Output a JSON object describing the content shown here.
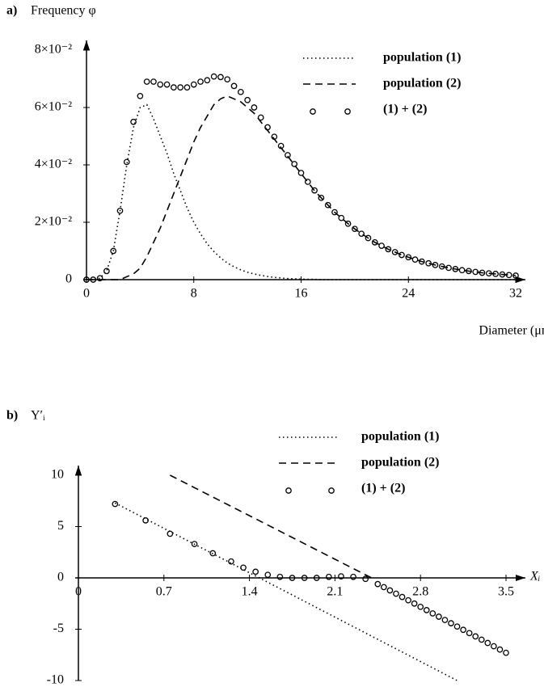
{
  "chart_data": [
    {
      "type": "line",
      "panel": "a)",
      "ylabel": "Frequency φ",
      "xlabel": "Diameter (μm)",
      "xlim": [
        0,
        32
      ],
      "ylim": [
        0,
        0.08
      ],
      "xticks": [
        0,
        8,
        16,
        24,
        32
      ],
      "yticks": [
        0,
        {
          "value": 0.02,
          "label": "2×10⁻²"
        },
        {
          "value": 0.04,
          "label": "4×10⁻²"
        },
        {
          "value": 0.06,
          "label": "6×10⁻²"
        },
        {
          "value": 0.08,
          "label": "8×10⁻²"
        }
      ],
      "x": [
        0,
        0.5,
        1,
        1.5,
        2,
        2.5,
        3,
        3.5,
        4,
        4.5,
        5,
        5.5,
        6,
        6.5,
        7,
        7.5,
        8,
        8.5,
        9,
        9.5,
        10,
        10.5,
        11,
        11.5,
        12,
        12.5,
        13,
        13.5,
        14,
        14.5,
        15,
        15.5,
        16,
        16.5,
        17,
        17.5,
        18,
        18.5,
        19,
        19.5,
        20,
        20.5,
        21,
        21.5,
        22,
        22.5,
        23,
        23.5,
        24,
        24.5,
        25,
        25.5,
        26,
        26.5,
        27,
        27.5,
        28,
        28.5,
        29,
        29.5,
        30,
        30.5,
        31,
        31.5,
        32
      ],
      "series": [
        {
          "name": "population (1)",
          "style": "dotted",
          "color": "#000000",
          "values": [
            0,
            0,
            0.0005,
            0.003,
            0.01,
            0.024,
            0.04,
            0.053,
            0.06,
            0.061,
            0.056,
            0.05,
            0.044,
            0.037,
            0.031,
            0.025,
            0.02,
            0.016,
            0.0125,
            0.0098,
            0.0076,
            0.0058,
            0.0045,
            0.0034,
            0.0026,
            0.002,
            0.0015,
            0.0011,
            0.0008,
            0.0006,
            0.0004,
            0.0003,
            0.0002,
            0.0001,
            0.0001,
            0,
            0,
            0,
            0,
            0,
            0,
            0,
            0,
            0,
            0,
            0,
            0,
            0,
            0,
            0,
            0,
            0,
            0,
            0,
            0,
            0,
            0,
            0,
            0,
            0,
            0,
            0,
            0,
            0,
            0
          ]
        },
        {
          "name": "population (2)",
          "style": "dashed",
          "color": "#000000",
          "values": [
            0,
            0,
            0,
            0,
            0,
            0,
            0.001,
            0.002,
            0.004,
            0.008,
            0.013,
            0.018,
            0.024,
            0.03,
            0.036,
            0.042,
            0.048,
            0.053,
            0.057,
            0.061,
            0.063,
            0.064,
            0.063,
            0.062,
            0.06,
            0.058,
            0.055,
            0.052,
            0.049,
            0.046,
            0.043,
            0.04,
            0.037,
            0.034,
            0.031,
            0.0285,
            0.026,
            0.0235,
            0.0215,
            0.0195,
            0.0177,
            0.016,
            0.0145,
            0.013,
            0.0118,
            0.0106,
            0.0096,
            0.0086,
            0.0078,
            0.007,
            0.0063,
            0.0057,
            0.0051,
            0.0046,
            0.0041,
            0.0037,
            0.0033,
            0.003,
            0.0027,
            0.0024,
            0.0022,
            0.002,
            0.0018,
            0.0016,
            0.0014
          ]
        },
        {
          "name": "(1) + (2)",
          "style": "markers",
          "color": "#000000",
          "values": [
            0,
            0,
            0.0005,
            0.003,
            0.01,
            0.024,
            0.041,
            0.055,
            0.064,
            0.069,
            0.069,
            0.068,
            0.068,
            0.067,
            0.067,
            0.067,
            0.068,
            0.069,
            0.0695,
            0.0708,
            0.0706,
            0.0698,
            0.0675,
            0.0654,
            0.0626,
            0.06,
            0.0565,
            0.0531,
            0.0498,
            0.0466,
            0.0434,
            0.0403,
            0.0372,
            0.0341,
            0.0311,
            0.0285,
            0.026,
            0.0235,
            0.0215,
            0.0195,
            0.0177,
            0.016,
            0.0145,
            0.013,
            0.0118,
            0.0106,
            0.0096,
            0.0086,
            0.0078,
            0.007,
            0.0063,
            0.0057,
            0.0051,
            0.0046,
            0.0041,
            0.0037,
            0.0033,
            0.003,
            0.0027,
            0.0024,
            0.0022,
            0.002,
            0.0018,
            0.0016,
            0.0014
          ]
        }
      ]
    },
    {
      "type": "line",
      "panel": "b)",
      "ylabel": "Y′ᵢ",
      "xlabel": "Xᵢ",
      "xlim": [
        0,
        3.5
      ],
      "ylim": [
        -10,
        10
      ],
      "xticks": [
        0,
        0.7,
        1.4,
        2.1,
        2.8,
        3.5
      ],
      "yticks": [
        -10,
        -5,
        0,
        5,
        10
      ],
      "series": [
        {
          "name": "population (1)",
          "style": "dotted",
          "color": "#000000",
          "x": [
            0.3,
            3.1
          ],
          "values": [
            7.3,
            -10
          ]
        },
        {
          "name": "population (2)",
          "style": "dashed",
          "color": "#000000",
          "x": [
            0.75,
            2.4
          ],
          "values": [
            10,
            0
          ]
        },
        {
          "name": "(1) + (2)",
          "style": "markers",
          "color": "#000000",
          "x": [
            0.3,
            0.55,
            0.75,
            0.95,
            1.1,
            1.25,
            1.35,
            1.45,
            1.55,
            1.65,
            1.75,
            1.85,
            1.95,
            2.05,
            2.15,
            2.25,
            2.35,
            2.45,
            2.5,
            2.55,
            2.6,
            2.65,
            2.7,
            2.75,
            2.8,
            2.85,
            2.9,
            2.95,
            3.0,
            3.05,
            3.1,
            3.15,
            3.2,
            3.25,
            3.3,
            3.35,
            3.4,
            3.45,
            3.5
          ],
          "values": [
            7.2,
            5.6,
            4.3,
            3.3,
            2.4,
            1.6,
            1.0,
            0.6,
            0.3,
            0.1,
            0,
            0,
            0,
            0.1,
            0.15,
            0.1,
            -0.1,
            -0.6,
            -0.9,
            -1.22,
            -1.54,
            -1.86,
            -2.18,
            -2.5,
            -2.82,
            -3.14,
            -3.46,
            -3.78,
            -4.1,
            -4.42,
            -4.74,
            -5.06,
            -5.38,
            -5.7,
            -6.02,
            -6.34,
            -6.66,
            -6.98,
            -7.3
          ]
        }
      ]
    }
  ]
}
